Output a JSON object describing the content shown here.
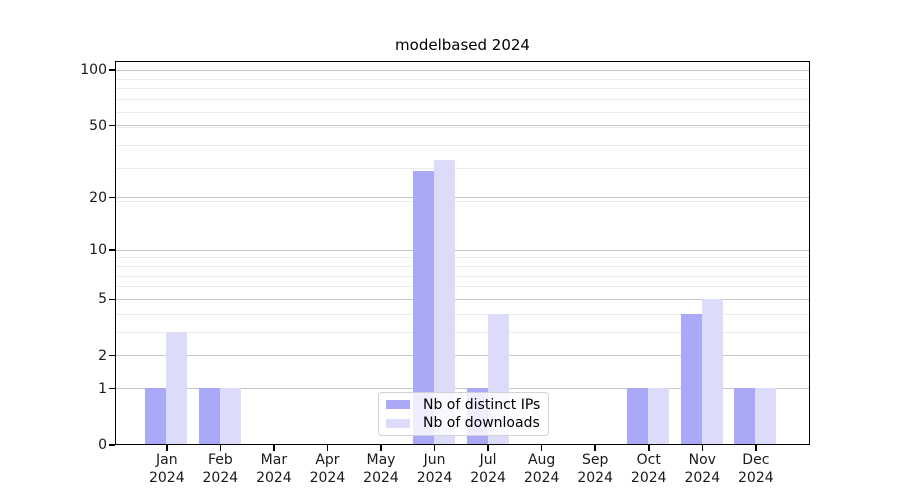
{
  "figure": {
    "title": "modelbased 2024"
  },
  "chart_data": {
    "type": "bar",
    "title": "modelbased 2024",
    "categories": [
      "Jan 2024",
      "Feb 2024",
      "Mar 2024",
      "Apr 2024",
      "May 2024",
      "Jun 2024",
      "Jul 2024",
      "Aug 2024",
      "Sep 2024",
      "Oct 2024",
      "Nov 2024",
      "Dec 2024"
    ],
    "series": [
      {
        "name": "Nb of distinct IPs",
        "color": "#a9a9f7",
        "values": [
          1,
          1,
          0,
          0,
          0,
          28,
          1,
          0,
          0,
          1,
          4,
          1
        ]
      },
      {
        "name": "Nb of downloads",
        "color": "#dcdcfa",
        "values": [
          3,
          1,
          0,
          0,
          0,
          32,
          4,
          0,
          0,
          1,
          5,
          1
        ]
      }
    ],
    "xlabel": "",
    "ylabel": "",
    "yscale": "log1p",
    "ylim": [
      0,
      100
    ],
    "yticks": [
      0,
      1,
      2,
      5,
      10,
      20,
      50,
      100
    ],
    "minor_gridline_values": [
      3,
      4,
      6,
      7,
      8,
      9,
      19,
      29,
      39,
      49,
      59,
      69,
      79,
      89
    ],
    "grid": "horizontal",
    "legend_position": "lower center"
  },
  "colors": {
    "grid_major": "#c6c6c6",
    "grid_minor": "#ebebeb",
    "frame": "#000000"
  }
}
